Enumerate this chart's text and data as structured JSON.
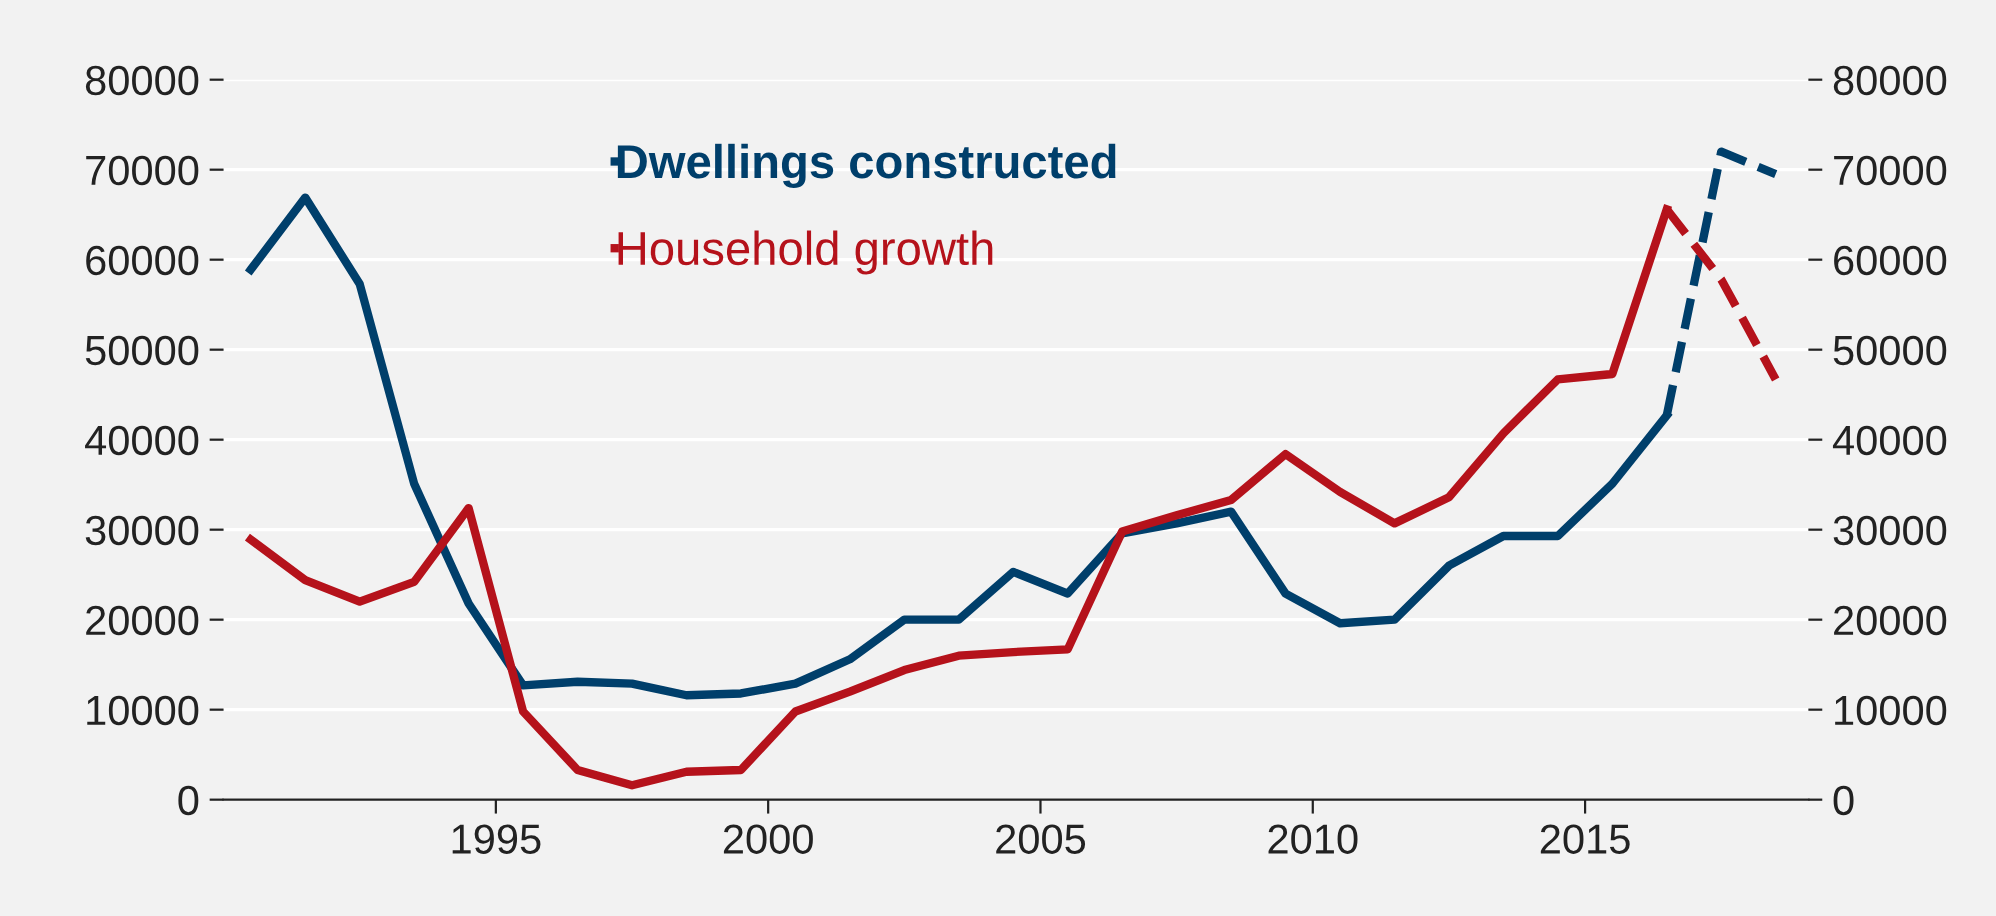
{
  "chart_data": {
    "type": "line",
    "x": [
      1990.5,
      1991.5,
      1992.5,
      1993.5,
      1994.5,
      1995.5,
      1996.5,
      1997.5,
      1998.5,
      1999.5,
      2000.5,
      2001.5,
      2002.5,
      2003.5,
      2004.5,
      2005.5,
      2006.5,
      2007.5,
      2008.5,
      2009.5,
      2010.5,
      2011.5,
      2012.5,
      2013.5,
      2014.5,
      2015.5,
      2016.5
    ],
    "series": [
      {
        "name": "Dwellings constructed",
        "color": "#003f6b",
        "values": [
          58900,
          66900,
          57300,
          35100,
          21800,
          12700,
          13100,
          12900,
          11600,
          11800,
          12900,
          15600,
          20000,
          20000,
          25300,
          22900,
          29600,
          30700,
          32000,
          22900,
          19600,
          20000,
          26000,
          29300,
          29300,
          35100,
          42700
        ]
      },
      {
        "name": "Household growth",
        "color": "#b5121b",
        "values": [
          28900,
          24400,
          22000,
          24200,
          32400,
          9800,
          3300,
          1600,
          3100,
          3300,
          9800,
          12000,
          14400,
          16000,
          16400,
          16700,
          29800,
          31600,
          33300,
          38400,
          34200,
          30700,
          33600,
          40700,
          46700,
          47300,
          65600
        ]
      },
      {
        "color": "#003f6b",
        "line_style": "dashed",
        "x": [
          2016.5,
          2017.5,
          2018.5
        ],
        "values": [
          42700,
          72000,
          69500
        ]
      },
      {
        "color": "#b5121b",
        "line_style": "dashed",
        "x": [
          2016.5,
          2017.5,
          2018.5
        ],
        "values": [
          65600,
          57800,
          46700
        ]
      }
    ],
    "xlim": [
      1990,
      2019.1
    ],
    "xticks": [
      1995,
      2000,
      2005,
      2010,
      2015
    ],
    "ylim": [
      0,
      80000
    ],
    "yticks": [
      0,
      10000,
      20000,
      30000,
      40000,
      50000,
      60000,
      70000,
      80000
    ],
    "y2lim": [
      0,
      80000
    ],
    "y2ticks": [
      0,
      10000,
      20000,
      30000,
      40000,
      50000,
      60000,
      70000,
      80000
    ],
    "grid": "y",
    "legend": "top left",
    "line_style": "solid",
    "marker": "none"
  }
}
